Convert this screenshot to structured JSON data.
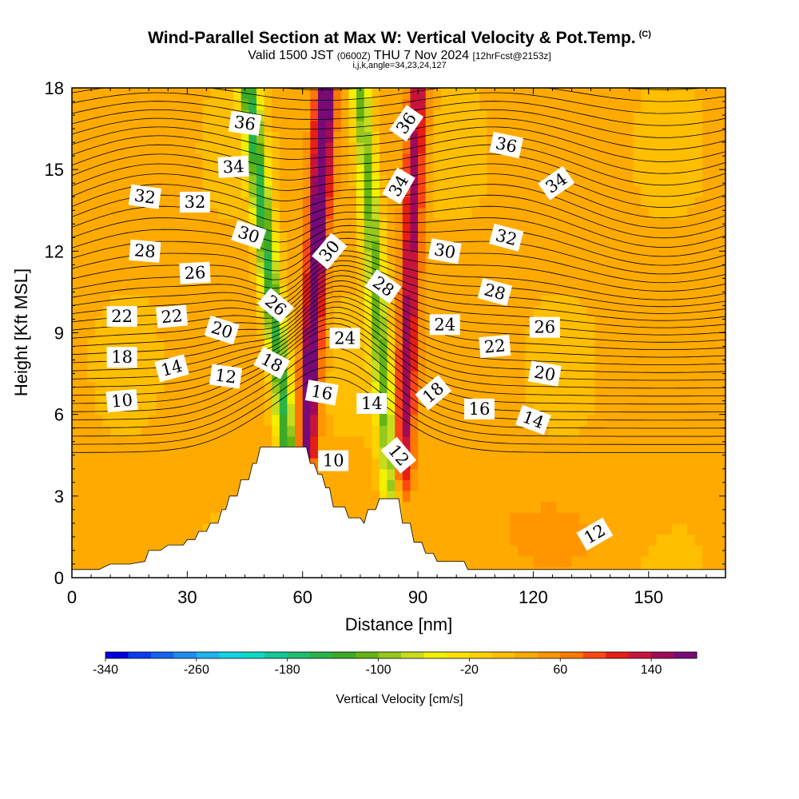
{
  "header": {
    "title": "Wind-Parallel Section at Max W: Vertical Velocity & Pot.Temp.",
    "copyright": "(C)",
    "valid_prefix": "Valid 1500 JST",
    "valid_utc": "(0600Z)",
    "valid_date": "THU 7 Nov 2024",
    "forecast_note": "[12hrFcst@2153z]",
    "params": "i,j,k,angle=34,23,24,127"
  },
  "chart_data": {
    "type": "heatmap",
    "xlabel": "Distance [nm]",
    "ylabel": "Height [Kft MSL]",
    "xlim": [
      0,
      170
    ],
    "ylim": [
      0,
      18
    ],
    "x_ticks": [
      0,
      30,
      60,
      90,
      120,
      150
    ],
    "y_ticks": [
      0,
      3,
      6,
      9,
      12,
      15,
      18
    ],
    "field": "Vertical Velocity",
    "colorbar": {
      "label": "Vertical Velocity [cm/s]",
      "min": -340,
      "max": 180,
      "step": 20,
      "tick_labels": [
        -340,
        -260,
        -180,
        -100,
        -20,
        60,
        140
      ],
      "colors": [
        "#0000e0",
        "#0a3cf0",
        "#1464f0",
        "#1e8cf0",
        "#1eb4f0",
        "#14d2e6",
        "#0adcc8",
        "#14c896",
        "#1ebe6e",
        "#28b446",
        "#3caa28",
        "#64b414",
        "#96c81e",
        "#c8dc1e",
        "#f0f000",
        "#ffe100",
        "#ffd200",
        "#ffbe00",
        "#ffaa00",
        "#ff9600",
        "#ff7800",
        "#ff4614",
        "#e61e14",
        "#c8143c",
        "#a00a5a",
        "#780a78"
      ]
    },
    "plumes": [
      {
        "name": "updraft",
        "wmax": 175,
        "x_at_bottom": 61,
        "x_at_top": 66,
        "y_bottom": 5
      },
      {
        "name": "updraft",
        "wmax": 125,
        "x_at_bottom": 86,
        "x_at_top": 90,
        "y_bottom": 4
      },
      {
        "name": "downdraft",
        "wmin": -170,
        "x_at_bottom": 56,
        "x_at_top": 46,
        "y_bottom": 5
      },
      {
        "name": "downdraft",
        "wmin": -140,
        "x_at_bottom": 83,
        "x_at_top": 75,
        "y_bottom": 3.5
      }
    ],
    "terrain": [
      [
        0,
        0.3
      ],
      [
        7,
        0.3
      ],
      [
        10,
        0.5
      ],
      [
        15,
        0.5
      ],
      [
        19,
        0.6
      ],
      [
        20,
        1.0
      ],
      [
        23,
        1.0
      ],
      [
        25,
        1.2
      ],
      [
        29,
        1.2
      ],
      [
        30,
        1.4
      ],
      [
        32,
        1.4
      ],
      [
        33,
        1.7
      ],
      [
        35,
        1.7
      ],
      [
        36,
        2.0
      ],
      [
        38,
        2.0
      ],
      [
        39,
        2.5
      ],
      [
        40,
        2.5
      ],
      [
        41,
        3.0
      ],
      [
        43,
        3.0
      ],
      [
        44,
        3.6
      ],
      [
        46,
        3.6
      ],
      [
        47,
        4.2
      ],
      [
        48,
        4.2
      ],
      [
        49,
        4.8
      ],
      [
        52,
        4.8
      ],
      [
        53,
        4.8
      ],
      [
        61,
        4.8
      ],
      [
        62,
        4.2
      ],
      [
        63,
        4.2
      ],
      [
        64,
        3.8
      ],
      [
        65,
        3.8
      ],
      [
        66,
        3.3
      ],
      [
        67,
        3.3
      ],
      [
        68,
        2.6
      ],
      [
        71,
        2.6
      ],
      [
        72,
        2.2
      ],
      [
        75,
        2.2
      ],
      [
        76,
        2.0
      ],
      [
        77,
        2.5
      ],
      [
        79,
        2.5
      ],
      [
        80,
        2.9
      ],
      [
        85,
        2.9
      ],
      [
        86,
        2.0
      ],
      [
        88,
        2.0
      ],
      [
        89,
        1.3
      ],
      [
        91,
        1.3
      ],
      [
        92,
        0.9
      ],
      [
        94,
        0.9
      ],
      [
        95,
        0.6
      ],
      [
        102,
        0.6
      ],
      [
        103,
        0.3
      ],
      [
        170,
        0.3
      ]
    ],
    "contour_labels": [
      {
        "text": "36",
        "x": 45,
        "y": 16.7,
        "angle": 8
      },
      {
        "text": "34",
        "x": 42,
        "y": 15.1,
        "angle": -3
      },
      {
        "text": "32",
        "x": 19,
        "y": 14.0,
        "angle": 8
      },
      {
        "text": "32",
        "x": 32,
        "y": 13.8,
        "angle": 0
      },
      {
        "text": "30",
        "x": 46,
        "y": 12.6,
        "angle": 18
      },
      {
        "text": "28",
        "x": 19,
        "y": 12.0,
        "angle": 5
      },
      {
        "text": "26",
        "x": 32,
        "y": 11.2,
        "angle": -3
      },
      {
        "text": "26",
        "x": 53,
        "y": 10.0,
        "angle": 40
      },
      {
        "text": "22",
        "x": 13,
        "y": 9.6,
        "angle": 0
      },
      {
        "text": "22",
        "x": 26,
        "y": 9.6,
        "angle": -5
      },
      {
        "text": "20",
        "x": 39,
        "y": 9.1,
        "angle": 18
      },
      {
        "text": "18",
        "x": 13,
        "y": 8.1,
        "angle": 0
      },
      {
        "text": "18",
        "x": 52,
        "y": 7.9,
        "angle": 28
      },
      {
        "text": "14",
        "x": 26,
        "y": 7.7,
        "angle": -15
      },
      {
        "text": "12",
        "x": 40,
        "y": 7.4,
        "angle": 8
      },
      {
        "text": "10",
        "x": 13,
        "y": 6.5,
        "angle": -5
      },
      {
        "text": "16",
        "x": 65,
        "y": 6.8,
        "angle": 10
      },
      {
        "text": "14",
        "x": 78,
        "y": 6.4,
        "angle": 0
      },
      {
        "text": "10",
        "x": 68,
        "y": 4.3,
        "angle": 0
      },
      {
        "text": "36",
        "x": 87,
        "y": 16.7,
        "angle": -55
      },
      {
        "text": "34",
        "x": 85,
        "y": 14.4,
        "angle": -60
      },
      {
        "text": "30",
        "x": 67,
        "y": 12.0,
        "angle": -50
      },
      {
        "text": "28",
        "x": 81,
        "y": 10.7,
        "angle": 35
      },
      {
        "text": "24",
        "x": 71,
        "y": 8.8,
        "angle": 0
      },
      {
        "text": "24",
        "x": 97,
        "y": 9.3,
        "angle": 0
      },
      {
        "text": "18",
        "x": 94,
        "y": 6.8,
        "angle": -40
      },
      {
        "text": "12",
        "x": 85,
        "y": 4.5,
        "angle": 50
      },
      {
        "text": "30",
        "x": 97,
        "y": 12.0,
        "angle": 10
      },
      {
        "text": "36",
        "x": 113,
        "y": 15.9,
        "angle": 12
      },
      {
        "text": "34",
        "x": 126,
        "y": 14.5,
        "angle": -35
      },
      {
        "text": "32",
        "x": 113,
        "y": 12.5,
        "angle": 15
      },
      {
        "text": "28",
        "x": 110,
        "y": 10.5,
        "angle": 15
      },
      {
        "text": "26",
        "x": 123,
        "y": 9.2,
        "angle": 0
      },
      {
        "text": "22",
        "x": 110,
        "y": 8.5,
        "angle": -5
      },
      {
        "text": "20",
        "x": 123,
        "y": 7.5,
        "angle": 10
      },
      {
        "text": "16",
        "x": 106,
        "y": 6.2,
        "angle": 0
      },
      {
        "text": "14",
        "x": 120,
        "y": 5.8,
        "angle": 20
      },
      {
        "text": "12",
        "x": 136,
        "y": 1.6,
        "angle": -30
      }
    ]
  }
}
